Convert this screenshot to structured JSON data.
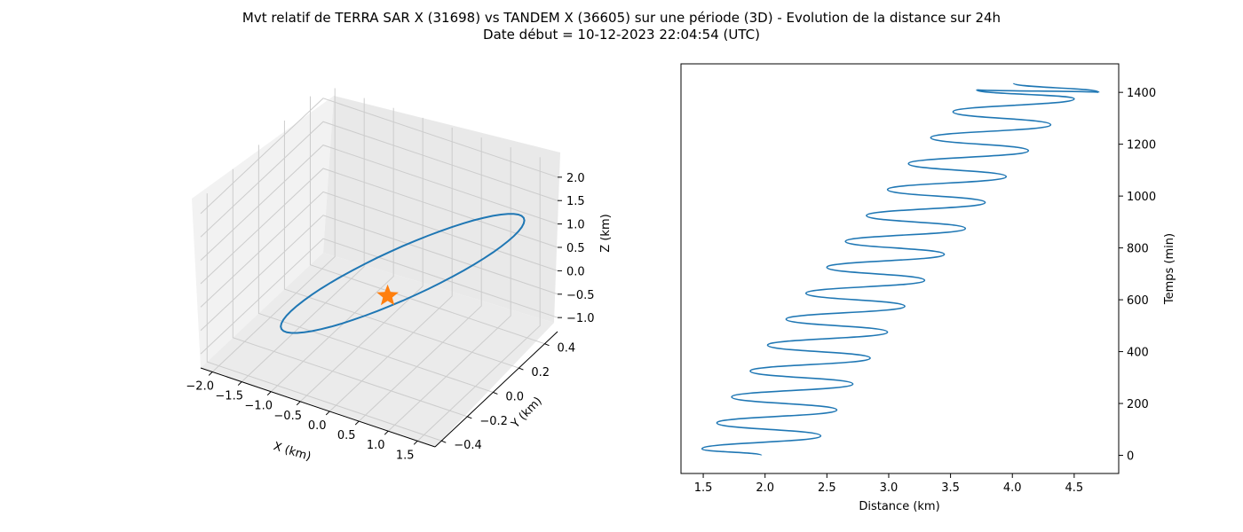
{
  "title_line1": "Mvt relatif de TERRA SAR X (31698) vs TANDEM X (36605) sur une période (3D) - Evolution de la distance sur 24h",
  "title_line2": "Date début = 10-12-2023 22:04:54 (UTC)",
  "colors": {
    "line": "#1f77b4",
    "marker": "#ff7f0e",
    "pane": "#f2f2f2",
    "grid": "#cccccc"
  },
  "chart_data": [
    {
      "type": "line3d",
      "xlabel": "X (km)",
      "ylabel": "Y (km)",
      "zlabel": "Z (km)",
      "xticks": [
        "−2.0",
        "−1.5",
        "−1.0",
        "−0.5",
        "0.0",
        "0.5",
        "1.0",
        "1.5"
      ],
      "yticks": [
        "−0.4",
        "−0.2",
        "0.0",
        "0.2",
        "0.4"
      ],
      "zticks": [
        "−1.0",
        "−0.5",
        "0.0",
        "0.5",
        "1.0",
        "1.5",
        "2.0"
      ],
      "xlim": [
        -2.2,
        1.8
      ],
      "ylim": [
        -0.45,
        0.5
      ],
      "zlim": [
        -1.3,
        2.3
      ],
      "grid": true,
      "trajectory": {
        "shape": "closed relative orbit (narrow ellipse)",
        "x_range": [
          -2.1,
          1.7
        ],
        "y_range": [
          -0.4,
          0.45
        ],
        "z_range": [
          -1.1,
          2.1
        ]
      },
      "marker": {
        "symbol": "star",
        "x": 0.0,
        "y": 0.0,
        "z": 0.0
      }
    },
    {
      "type": "line",
      "xlabel": "Distance (km)",
      "ylabel": "Temps (min)",
      "xticks": [
        "1.5",
        "2.0",
        "2.5",
        "3.0",
        "3.5",
        "4.0",
        "4.5"
      ],
      "yticks": [
        "0",
        "200",
        "400",
        "600",
        "800",
        "1000",
        "1200",
        "1400"
      ],
      "xlim": [
        1.32,
        4.86
      ],
      "ylim": [
        -70,
        1510
      ],
      "y_axis_side": "right",
      "grid": false,
      "series": [
        {
          "x": [
            1.97,
            1.49,
            2.45,
            1.61,
            2.58,
            1.73,
            2.71,
            1.88,
            2.85,
            2.02,
            2.99,
            2.17,
            3.13,
            2.33,
            3.29,
            2.5,
            3.45,
            2.65,
            3.62,
            2.82,
            3.78,
            2.99,
            3.95,
            3.16,
            4.13,
            3.34,
            4.31,
            3.52,
            4.5,
            3.71,
            4.7,
            4.01
          ],
          "y": [
            0,
            25,
            75,
            125,
            175,
            225,
            275,
            325,
            375,
            425,
            475,
            525,
            575,
            625,
            675,
            725,
            775,
            825,
            875,
            925,
            975,
            1025,
            1075,
            1125,
            1175,
            1225,
            1275,
            1325,
            1375,
            1410,
            1400,
            1435
          ]
        }
      ]
    }
  ]
}
